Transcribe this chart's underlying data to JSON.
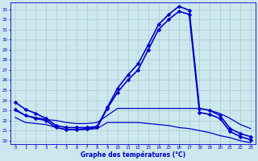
{
  "bg_color": "#cce8ee",
  "grid_color": "#aacccc",
  "line_color": "#0000cc",
  "xlabel": "Graphe des températures (°C)",
  "xlabel_color": "#0000cc",
  "ylabel_ticks": [
    20,
    21,
    22,
    23,
    24,
    25,
    26,
    27,
    28,
    29,
    30,
    31,
    32,
    33
  ],
  "xlim": [
    -0.5,
    23.5
  ],
  "ylim": [
    19.7,
    33.7
  ],
  "xticks": [
    0,
    1,
    2,
    3,
    4,
    5,
    6,
    7,
    8,
    9,
    10,
    11,
    12,
    13,
    14,
    15,
    16,
    17,
    18,
    19,
    20,
    21,
    22,
    23
  ],
  "curve1": {
    "x": [
      0,
      1,
      2,
      3,
      4,
      5,
      6,
      7,
      8,
      9,
      10,
      11,
      12,
      13,
      14,
      15,
      16,
      17,
      18,
      19,
      20,
      21,
      22,
      23
    ],
    "y": [
      23.8,
      23.1,
      22.7,
      22.2,
      21.5,
      21.3,
      21.3,
      21.3,
      21.4,
      23.3,
      25.2,
      26.5,
      27.6,
      29.5,
      31.5,
      32.5,
      33.3,
      32.9,
      23.2,
      23.0,
      22.5,
      21.2,
      20.7,
      20.4
    ],
    "marker": "D",
    "markersize": 2.5,
    "linewidth": 1.2
  },
  "curve2": {
    "x": [
      0,
      1,
      2,
      3,
      4,
      5,
      6,
      7,
      8,
      9,
      10,
      11,
      12,
      13,
      14,
      15,
      16,
      17,
      18,
      19,
      20,
      21,
      22,
      23
    ],
    "y": [
      23.1,
      22.5,
      22.2,
      22.0,
      21.3,
      21.1,
      21.1,
      21.2,
      21.3,
      23.2,
      24.8,
      26.0,
      27.0,
      29.0,
      31.0,
      32.0,
      32.8,
      32.5,
      22.8,
      22.6,
      22.2,
      20.9,
      20.4,
      20.1
    ],
    "marker": "D",
    "markersize": 2.5,
    "linewidth": 1.2
  },
  "curve3": {
    "x": [
      0,
      1,
      2,
      3,
      4,
      5,
      6,
      7,
      8,
      9,
      10,
      11,
      12,
      13,
      14,
      15,
      16,
      17,
      18,
      19,
      20,
      21,
      22,
      23
    ],
    "y": [
      23.0,
      22.5,
      22.3,
      22.1,
      22.0,
      21.8,
      21.7,
      21.7,
      21.8,
      22.5,
      23.2,
      23.2,
      23.2,
      23.2,
      23.2,
      23.2,
      23.2,
      23.2,
      23.2,
      23.0,
      22.7,
      22.2,
      21.6,
      21.2
    ],
    "marker": null,
    "markersize": 0,
    "linewidth": 0.9
  },
  "curve4": {
    "x": [
      0,
      1,
      2,
      3,
      4,
      5,
      6,
      7,
      8,
      9,
      10,
      11,
      12,
      13,
      14,
      15,
      16,
      17,
      18,
      19,
      20,
      21,
      22,
      23
    ],
    "y": [
      22.3,
      21.8,
      21.7,
      21.6,
      21.3,
      21.1,
      21.1,
      21.1,
      21.2,
      21.8,
      21.8,
      21.8,
      21.8,
      21.7,
      21.6,
      21.5,
      21.3,
      21.2,
      21.0,
      20.8,
      20.5,
      20.3,
      20.0,
      19.8
    ],
    "marker": null,
    "markersize": 0,
    "linewidth": 0.9
  }
}
